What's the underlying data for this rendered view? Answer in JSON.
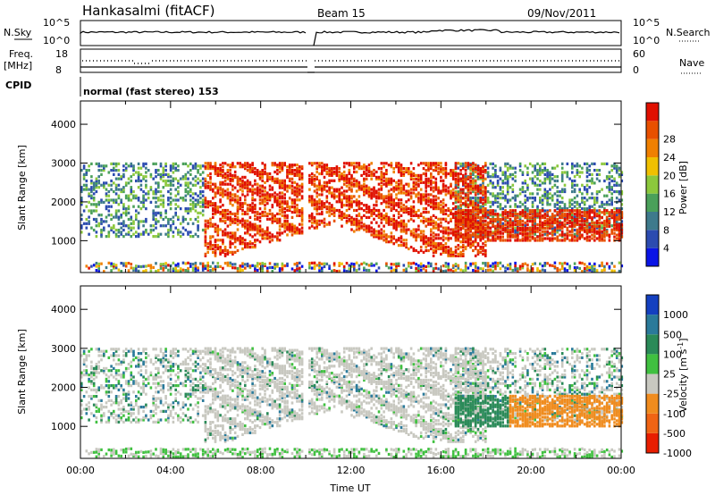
{
  "header": {
    "title": "Hankasalmi (fitACF)",
    "beam": "Beam 15",
    "date": "09/Nov/2011"
  },
  "panels": {
    "nsky_label": "N.Sky",
    "nsearch_label": "N.Search",
    "freq_label_line1": "Freq.",
    "freq_label_line2": "[MHz]",
    "nave_label": "Nave",
    "cpid_label": "CPID",
    "cpid_text": "normal (fast stereo) 153",
    "nsky_ticks": [
      "10^5",
      "10^0"
    ],
    "nsearch_ticks": [
      "10^5",
      "10^0"
    ],
    "freq_ticks": [
      "18",
      "8"
    ],
    "nave_ticks": [
      "60",
      "0"
    ]
  },
  "chart_data": [
    {
      "type": "heatmap",
      "title": "",
      "xlabel": "Time UT",
      "ylabel": "Slant Range [km]",
      "x_ticks": [
        "00:00",
        "04:00",
        "08:00",
        "12:00",
        "16:00",
        "20:00",
        "00:00"
      ],
      "y_ticks": [
        1000,
        2000,
        3000,
        4000
      ],
      "xlim_hours": [
        0,
        24
      ],
      "ylim_km": [
        180,
        4600
      ],
      "colorbar": {
        "label": "Power [dB]",
        "ticks": [
          "4",
          "8",
          "12",
          "16",
          "20",
          "24",
          "28"
        ],
        "colors": [
          "#0a14e6",
          "#2c4bb0",
          "#3e7a8c",
          "#4aa05a",
          "#8cc83c",
          "#f0c000",
          "#f08000",
          "#e85000",
          "#e01000"
        ]
      }
    },
    {
      "type": "heatmap",
      "title": "",
      "xlabel": "Time UT",
      "ylabel": "Slant Range [km]",
      "x_ticks": [
        "00:00",
        "04:00",
        "08:00",
        "12:00",
        "16:00",
        "20:00",
        "00:00"
      ],
      "y_ticks": [
        1000,
        2000,
        3000,
        4000
      ],
      "xlim_hours": [
        0,
        24
      ],
      "ylim_km": [
        180,
        4600
      ],
      "colorbar": {
        "label": "Velocity [m s",
        "label_sup": "-1",
        "label_end": "]",
        "ticks": [
          "1000",
          "500",
          "100",
          "25",
          "-25",
          "-100",
          "-500",
          "-1000"
        ],
        "colors": [
          "#1440c0",
          "#2a7a9a",
          "#2a8a58",
          "#40c040",
          "#c8c8c0",
          "#f08c1e",
          "#f06414",
          "#e81e00"
        ]
      }
    }
  ]
}
